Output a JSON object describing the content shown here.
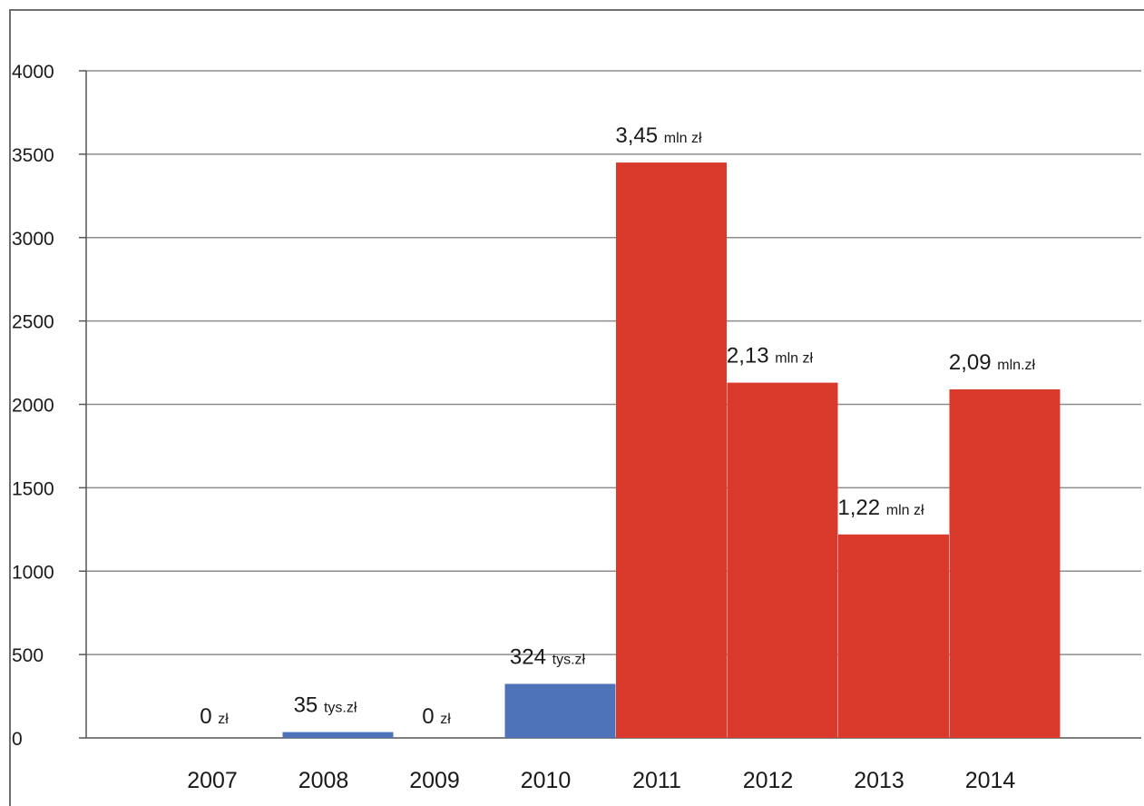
{
  "chart_data": {
    "type": "bar",
    "title": "",
    "xlabel": "",
    "ylabel": "",
    "ylim": [
      0,
      4000
    ],
    "yticks": [
      0,
      500,
      1000,
      1500,
      2000,
      2500,
      3000,
      3500,
      4000
    ],
    "grid": true,
    "categories": [
      "2007",
      "2008",
      "2009",
      "2010",
      "2011",
      "2012",
      "2013",
      "2014"
    ],
    "values": [
      0,
      35,
      0,
      324,
      3450,
      2130,
      1220,
      2090
    ],
    "bar_colors": [
      "#4f73b8",
      "#4f73b8",
      "#4f73b8",
      "#4f73b8",
      "#d93a2b",
      "#d93a2b",
      "#d93a2b",
      "#d93a2b"
    ],
    "data_labels": [
      {
        "value": "0",
        "unit": "zł"
      },
      {
        "value": "35",
        "unit": "tys.zł"
      },
      {
        "value": "0",
        "unit": "zł"
      },
      {
        "value": "324",
        "unit": "tys.zł"
      },
      {
        "value": "3,45",
        "unit": "mln zł"
      },
      {
        "value": "2,13",
        "unit": "mln zł"
      },
      {
        "value": "1,22",
        "unit": "mln zł"
      },
      {
        "value": "2,09",
        "unit": "mln.zł"
      }
    ],
    "colors": {
      "blue": "#4f73b8",
      "red": "#d93a2b",
      "grid": "#8c8c8c",
      "axis": "#555555"
    }
  }
}
